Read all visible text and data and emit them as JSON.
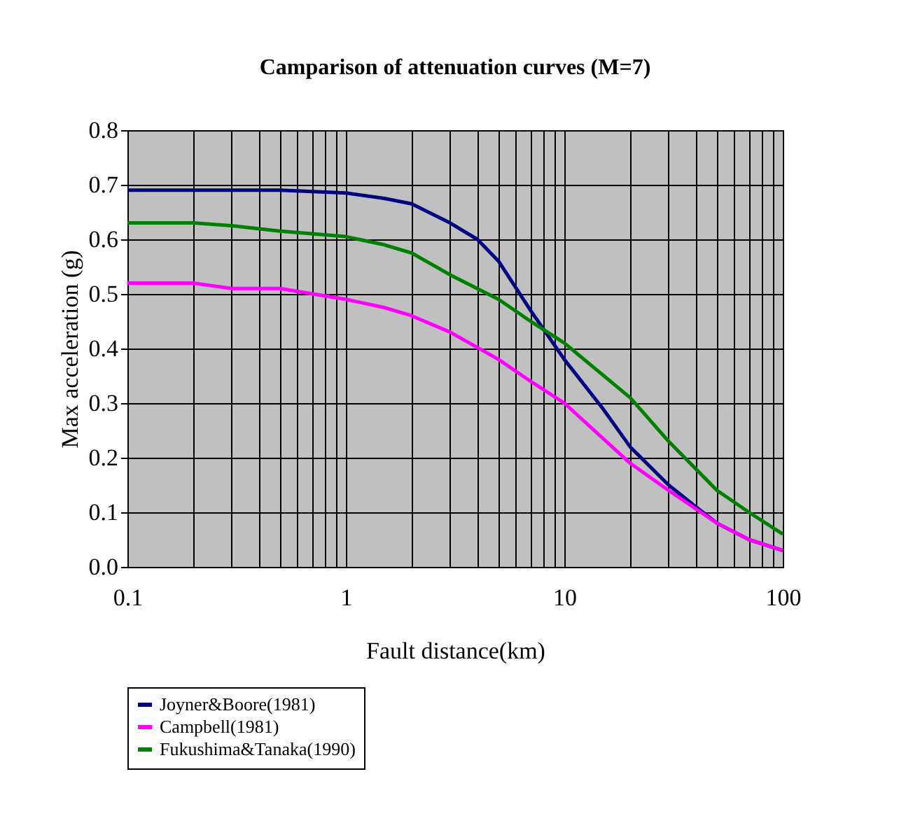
{
  "chart_data": {
    "type": "line",
    "title": "Camparison of attenuation curves (M=7)",
    "xlabel": "Fault distance(km)",
    "ylabel": "Max acceleration (g)",
    "log": "x",
    "grid": true,
    "legend": "bottom",
    "line_style": "solid",
    "marker": "none",
    "xlim": [
      0.1,
      100
    ],
    "ylim": [
      0,
      0.8
    ],
    "xticks": [
      0.1,
      {
        "value": 0.2,
        "label": null
      },
      {
        "value": 0.3,
        "label": null
      },
      {
        "value": 0.4,
        "label": null
      },
      {
        "value": 0.5,
        "label": null
      },
      {
        "value": 0.6,
        "label": null
      },
      {
        "value": 0.7,
        "label": null
      },
      {
        "value": 0.8,
        "label": null
      },
      {
        "value": 0.9,
        "label": null
      },
      1,
      {
        "value": 2,
        "label": null
      },
      {
        "value": 3,
        "label": null
      },
      {
        "value": 4,
        "label": null
      },
      {
        "value": 5,
        "label": null
      },
      {
        "value": 6,
        "label": null
      },
      {
        "value": 7,
        "label": null
      },
      {
        "value": 8,
        "label": null
      },
      {
        "value": 9,
        "label": null
      },
      10,
      {
        "value": 20,
        "label": null
      },
      {
        "value": 30,
        "label": null
      },
      {
        "value": 40,
        "label": null
      },
      {
        "value": 50,
        "label": null
      },
      {
        "value": 60,
        "label": null
      },
      {
        "value": 70,
        "label": null
      },
      {
        "value": 80,
        "label": null
      },
      {
        "value": 90,
        "label": null
      },
      100
    ],
    "yticks": [
      {
        "value": 0,
        "label": "0.0"
      },
      0.1,
      0.2,
      0.3,
      0.4,
      0.5,
      0.6,
      0.7,
      0.8
    ],
    "series": [
      {
        "name": "Joyner&Boore(1981)",
        "color": "#000080",
        "x": [
          0.1,
          0.5,
          1,
          1.5,
          2,
          3,
          4,
          5,
          7,
          10,
          15,
          20,
          30,
          40,
          50,
          70,
          100
        ],
        "values": [
          0.69,
          0.69,
          0.685,
          0.675,
          0.665,
          0.63,
          0.6,
          0.56,
          0.47,
          0.38,
          0.29,
          0.22,
          0.15,
          0.11,
          0.08,
          0.05,
          0.03
        ]
      },
      {
        "name": "Campbell(1981)",
        "color": "#ff00ff",
        "x": [
          0.1,
          0.2,
          0.3,
          0.5,
          1,
          1.5,
          2,
          3,
          5,
          7,
          10,
          20,
          30,
          50,
          70,
          100
        ],
        "values": [
          0.52,
          0.52,
          0.51,
          0.51,
          0.49,
          0.475,
          0.46,
          0.43,
          0.38,
          0.34,
          0.3,
          0.19,
          0.14,
          0.08,
          0.05,
          0.03
        ]
      },
      {
        "name": "Fukushima&Tanaka(1990)",
        "color": "#008000",
        "x": [
          0.1,
          0.2,
          0.3,
          0.5,
          1,
          1.5,
          2,
          3,
          5,
          7,
          10,
          20,
          30,
          50,
          70,
          100
        ],
        "values": [
          0.63,
          0.63,
          0.625,
          0.615,
          0.605,
          0.59,
          0.575,
          0.535,
          0.49,
          0.45,
          0.41,
          0.31,
          0.23,
          0.14,
          0.1,
          0.06
        ]
      }
    ]
  }
}
